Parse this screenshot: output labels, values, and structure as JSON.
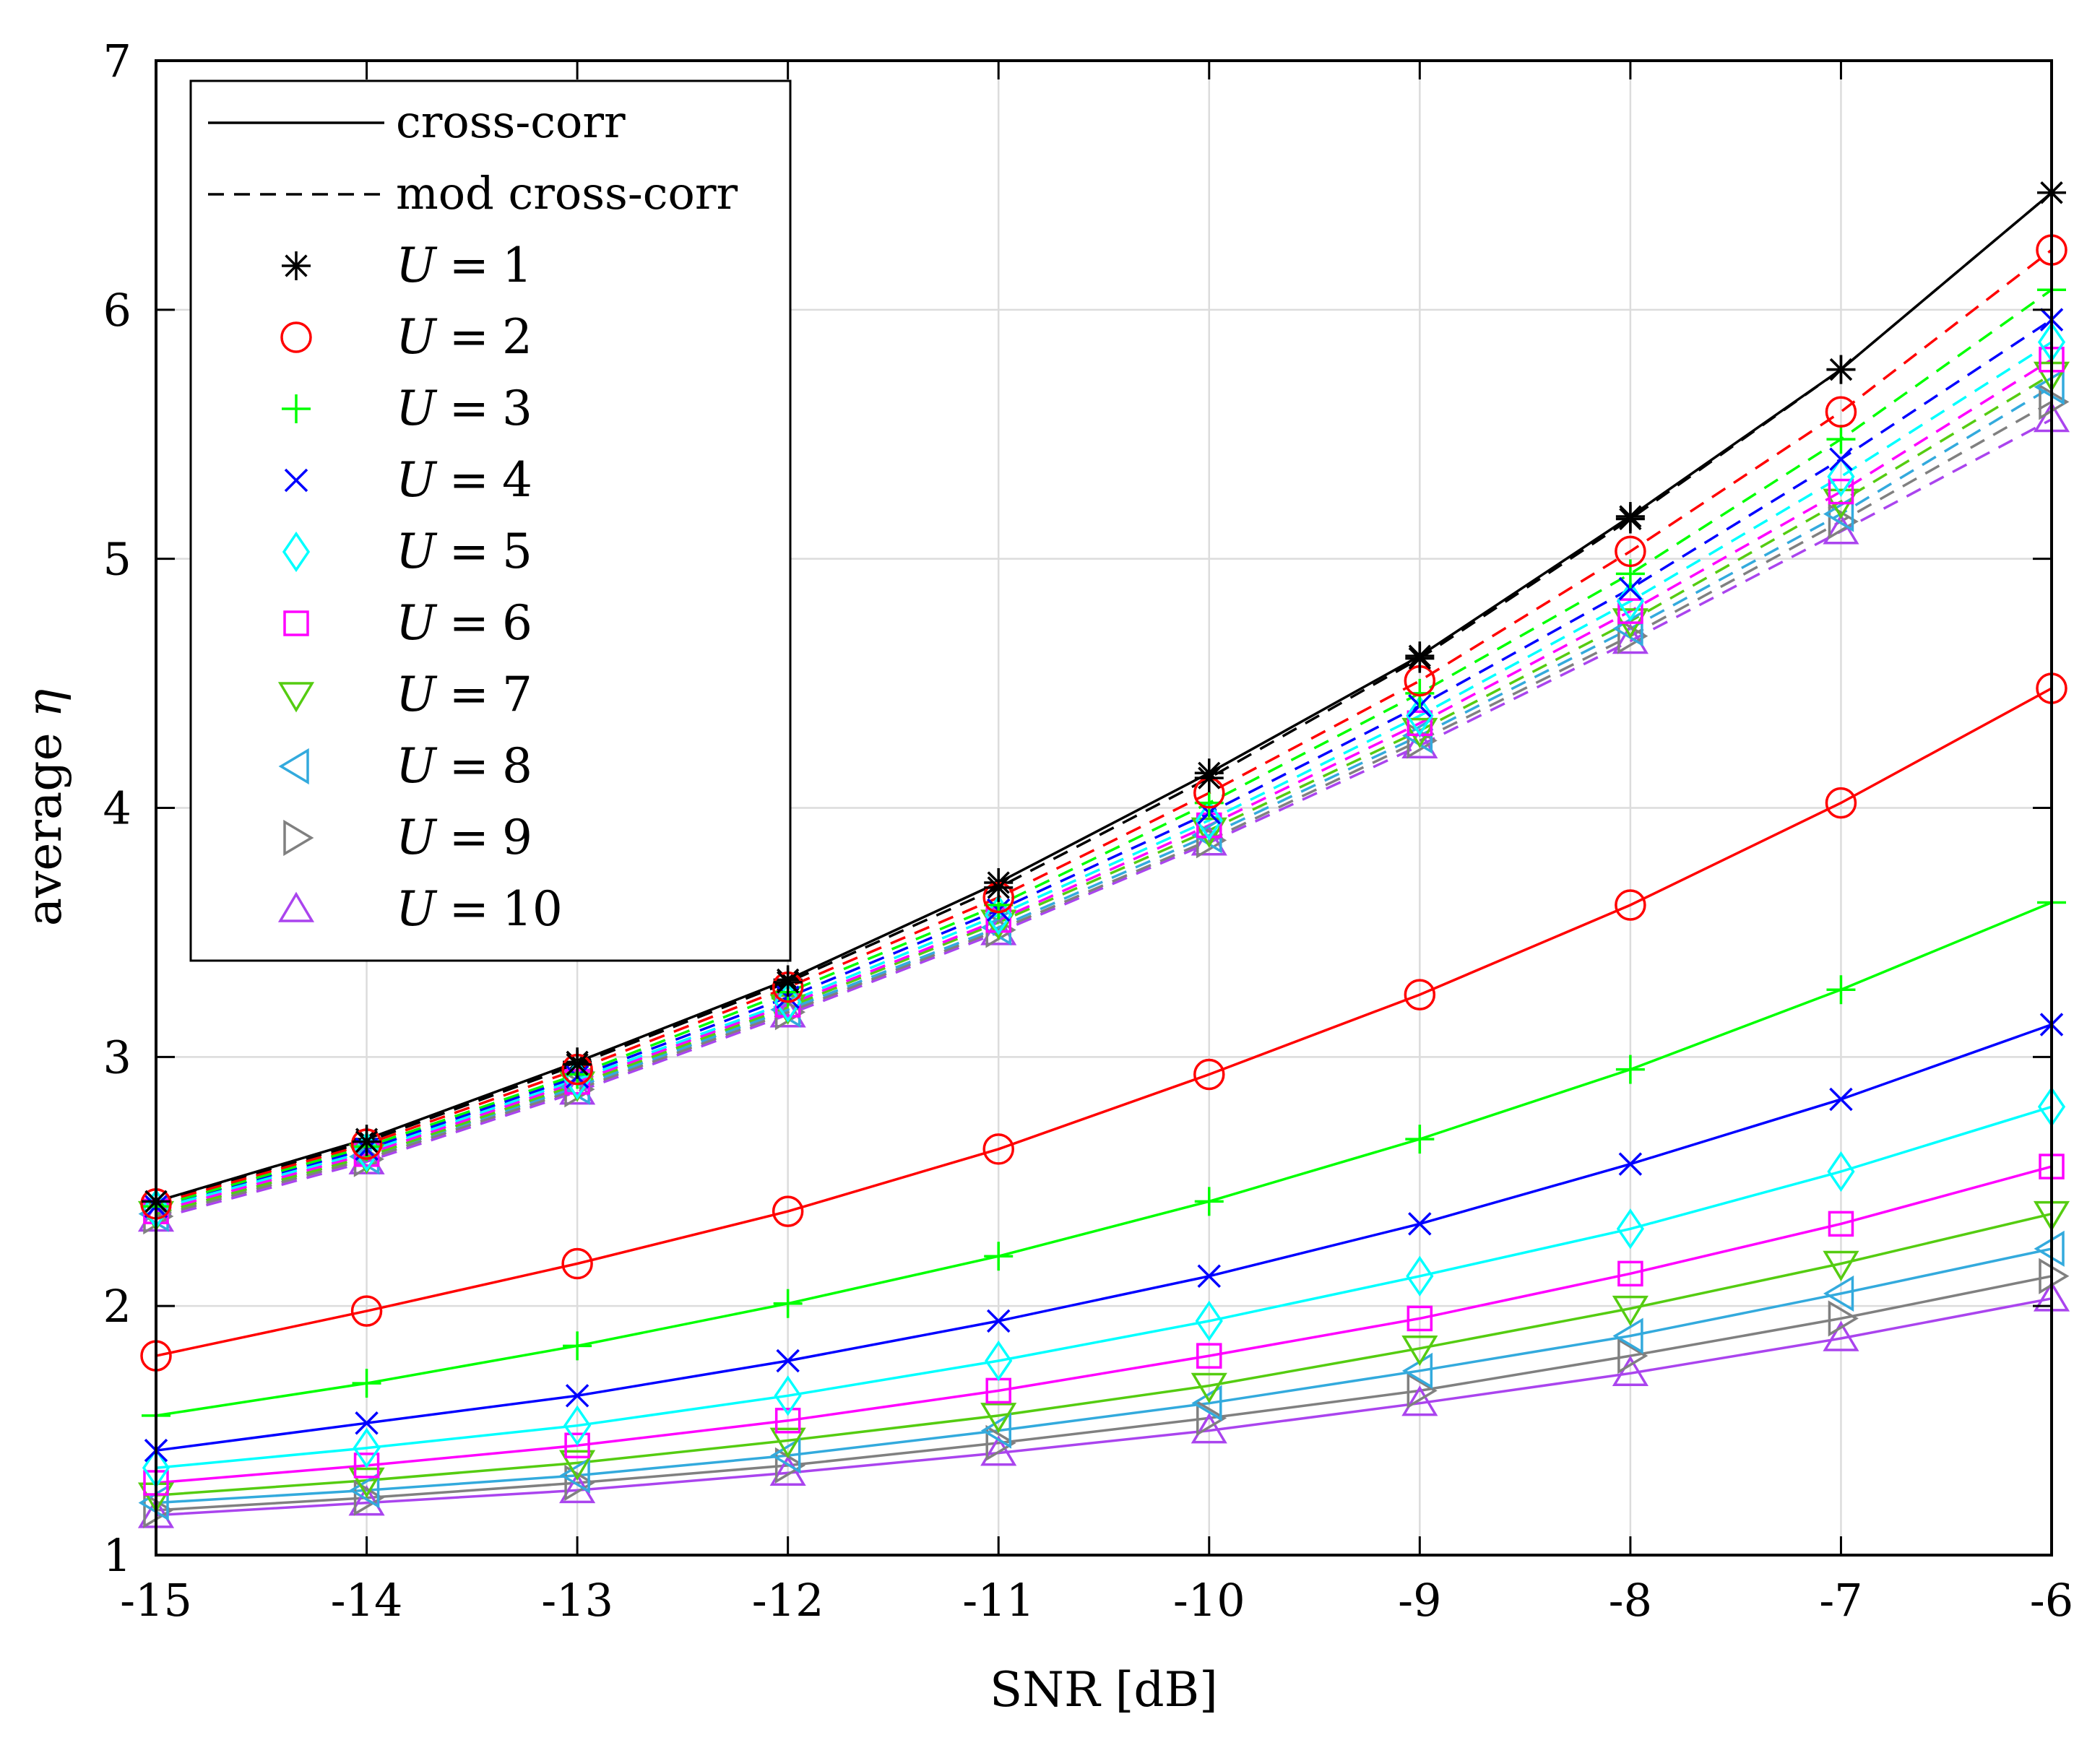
{
  "chart_data": {
    "type": "line",
    "xlabel": "SNR [dB]",
    "ylabel_prefix": "average ",
    "ylabel_symbol": "η",
    "xlim": [
      -15,
      -6
    ],
    "ylim": [
      1,
      7
    ],
    "x": [
      -15,
      -14,
      -13,
      -12,
      -11,
      -10,
      -9,
      -8,
      -7,
      -6
    ],
    "xticks": [
      -15,
      -14,
      -13,
      -12,
      -11,
      -10,
      -9,
      -8,
      -7,
      -6
    ],
    "xtick_labels": [
      "-15",
      "-14",
      "-13",
      "-12",
      "-11",
      "-10",
      "-9",
      "-8",
      "-7",
      "-6"
    ],
    "yticks": [
      1,
      2,
      3,
      4,
      5,
      6,
      7
    ],
    "ytick_labels": [
      "1",
      "2",
      "3",
      "4",
      "5",
      "6",
      "7"
    ],
    "grid": true,
    "legend_position": "top-left",
    "line_styles": [
      {
        "label": "cross-corr",
        "style": "solid"
      },
      {
        "label": "mod cross-corr",
        "style": "dashed"
      }
    ],
    "series": [
      {
        "name": "U = 1",
        "var": "U",
        "num": "1",
        "color": "#000000",
        "marker": "asterisk",
        "solid": [
          2.42,
          2.67,
          2.98,
          3.31,
          3.7,
          4.14,
          4.61,
          5.17,
          5.76,
          6.47
        ],
        "dashed": [
          2.42,
          2.66,
          2.97,
          3.3,
          3.68,
          4.12,
          4.6,
          5.16,
          5.76,
          6.47
        ]
      },
      {
        "name": "U = 2",
        "var": "U",
        "num": "2",
        "color": "#ff0000",
        "marker": "circle",
        "solid": [
          1.8,
          1.98,
          2.17,
          2.38,
          2.63,
          2.93,
          3.25,
          3.61,
          4.02,
          4.48
        ],
        "dashed": [
          2.41,
          2.65,
          2.95,
          3.28,
          3.64,
          4.06,
          4.51,
          5.03,
          5.59,
          6.24
        ]
      },
      {
        "name": "U = 3",
        "var": "U",
        "num": "3",
        "color": "#00ff00",
        "marker": "plus",
        "solid": [
          1.56,
          1.69,
          1.84,
          2.01,
          2.2,
          2.42,
          2.67,
          2.95,
          3.27,
          3.62
        ],
        "dashed": [
          2.4,
          2.64,
          2.93,
          3.26,
          3.61,
          4.02,
          4.46,
          4.94,
          5.48,
          6.08
        ]
      },
      {
        "name": "U = 4",
        "var": "U",
        "num": "4",
        "color": "#0000ff",
        "marker": "cross",
        "solid": [
          1.42,
          1.53,
          1.64,
          1.78,
          1.94,
          2.12,
          2.33,
          2.57,
          2.83,
          3.13
        ],
        "dashed": [
          2.4,
          2.63,
          2.92,
          3.24,
          3.59,
          3.98,
          4.41,
          4.88,
          5.4,
          5.96
        ]
      },
      {
        "name": "U = 5",
        "var": "U",
        "num": "5",
        "color": "#00ffff",
        "marker": "diamond",
        "solid": [
          1.35,
          1.43,
          1.52,
          1.64,
          1.78,
          1.94,
          2.12,
          2.31,
          2.54,
          2.8
        ],
        "dashed": [
          2.39,
          2.62,
          2.91,
          3.22,
          3.57,
          3.95,
          4.37,
          4.83,
          5.33,
          5.87
        ]
      },
      {
        "name": "U = 6",
        "var": "U",
        "num": "6",
        "color": "#ff00ff",
        "marker": "square",
        "solid": [
          1.29,
          1.36,
          1.44,
          1.54,
          1.66,
          1.8,
          1.95,
          2.13,
          2.33,
          2.56
        ],
        "dashed": [
          2.38,
          2.61,
          2.9,
          3.21,
          3.55,
          3.93,
          4.34,
          4.79,
          5.27,
          5.8
        ]
      },
      {
        "name": "U = 7",
        "var": "U",
        "num": "7",
        "color": "#55cc11",
        "marker": "triangle-down",
        "solid": [
          1.24,
          1.3,
          1.37,
          1.46,
          1.56,
          1.68,
          1.83,
          1.99,
          2.17,
          2.37
        ],
        "dashed": [
          2.37,
          2.6,
          2.89,
          3.2,
          3.54,
          3.91,
          4.31,
          4.75,
          5.23,
          5.74
        ]
      },
      {
        "name": "U = 8",
        "var": "U",
        "num": "8",
        "color": "#33aadd",
        "marker": "triangle-left",
        "solid": [
          1.21,
          1.26,
          1.32,
          1.4,
          1.5,
          1.61,
          1.74,
          1.88,
          2.05,
          2.23
        ],
        "dashed": [
          2.37,
          2.6,
          2.88,
          3.19,
          3.52,
          3.89,
          4.29,
          4.72,
          5.18,
          5.69
        ]
      },
      {
        "name": "U = 9",
        "var": "U",
        "num": "9",
        "color": "#808080",
        "marker": "triangle-right",
        "solid": [
          1.18,
          1.23,
          1.29,
          1.36,
          1.45,
          1.55,
          1.66,
          1.8,
          1.95,
          2.12
        ],
        "dashed": [
          2.36,
          2.59,
          2.87,
          3.18,
          3.51,
          3.87,
          4.27,
          4.69,
          5.15,
          5.63
        ]
      },
      {
        "name": "U = 10",
        "var": "U",
        "num": "10",
        "color": "#aa44ee",
        "marker": "triangle-up",
        "solid": [
          1.16,
          1.21,
          1.26,
          1.33,
          1.41,
          1.5,
          1.61,
          1.73,
          1.87,
          2.03
        ],
        "dashed": [
          2.35,
          2.58,
          2.86,
          3.17,
          3.5,
          3.86,
          4.25,
          4.67,
          5.11,
          5.56
        ]
      }
    ]
  }
}
